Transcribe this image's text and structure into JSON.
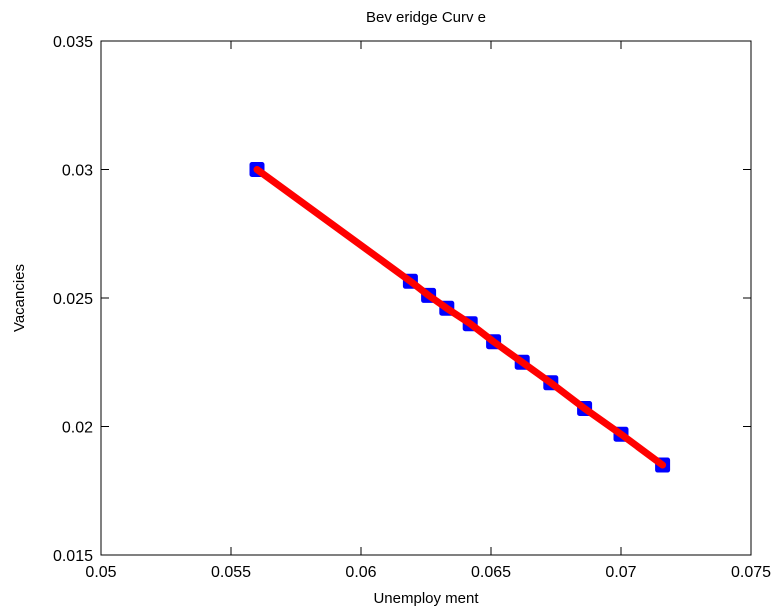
{
  "chart_data": {
    "type": "line",
    "title": "Bev eridge Curv e",
    "xlabel": "Unemploy ment",
    "ylabel": "Vacancies",
    "xlim": [
      0.05,
      0.075
    ],
    "ylim": [
      0.015,
      0.035
    ],
    "xticks": [
      0.05,
      0.055,
      0.06,
      0.065,
      0.07,
      0.075
    ],
    "yticks": [
      0.015,
      0.02,
      0.025,
      0.03,
      0.035
    ],
    "xtick_labels": [
      "0.05",
      "0.055",
      "0.06",
      "0.065",
      "0.07",
      "0.075"
    ],
    "ytick_labels": [
      "0.015",
      "0.02",
      "0.025",
      "0.03",
      "0.035"
    ],
    "grid": false,
    "box": true,
    "series": [
      {
        "marker": "square",
        "line": "solid",
        "marker_color": "#0000ff",
        "line_color": "#ff0000",
        "x": [
          0.056,
          0.0619,
          0.0626,
          0.0633,
          0.0642,
          0.0651,
          0.0662,
          0.0673,
          0.0686,
          0.07,
          0.0716
        ],
        "y": [
          0.03,
          0.02565,
          0.0251,
          0.0246,
          0.024,
          0.0233,
          0.0225,
          0.0217,
          0.0207,
          0.0197,
          0.0185
        ]
      }
    ]
  }
}
